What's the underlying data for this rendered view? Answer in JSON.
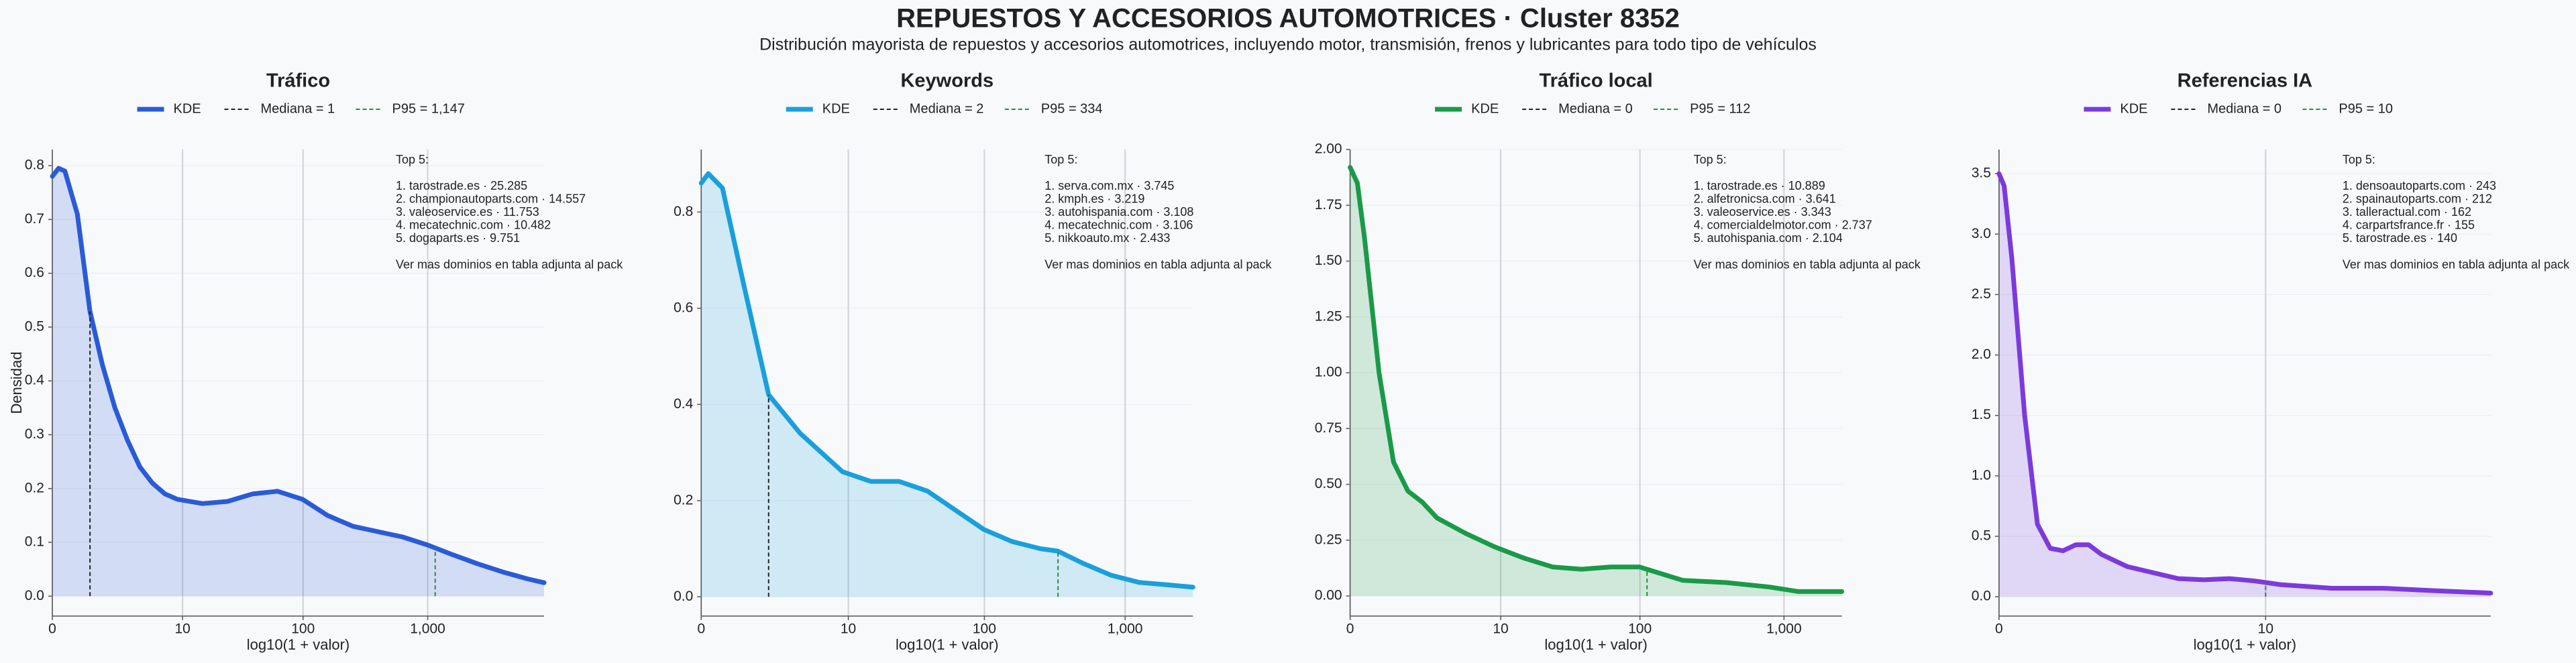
{
  "title": "REPUESTOS Y ACCESORIOS AUTOMOTRICES · Cluster 8352",
  "subtitle": "Distribución mayorista de repuestos y accesorios automotrices, incluyendo motor, transmisión, frenos y lubricantes para todo tipo de vehículos",
  "chart_data": [
    {
      "type": "line",
      "title": "Tráfico",
      "x_label": "log10(1 + valor)",
      "y_label": "Densidad",
      "x": [
        0,
        0.05,
        0.1,
        0.2,
        0.3,
        0.4,
        0.5,
        0.6,
        0.7,
        0.8,
        0.9,
        1.0,
        1.2,
        1.4,
        1.6,
        1.8,
        2.0,
        2.2,
        2.4,
        2.6,
        2.8,
        3.0,
        3.2,
        3.4,
        3.6,
        3.8,
        3.93
      ],
      "series": [
        {
          "name": "KDE",
          "color": "#2a5bd7",
          "values": [
            0.78,
            0.795,
            0.79,
            0.71,
            0.53,
            0.43,
            0.35,
            0.29,
            0.24,
            0.21,
            0.19,
            0.18,
            0.172,
            0.176,
            0.19,
            0.195,
            0.18,
            0.15,
            0.13,
            0.12,
            0.11,
            0.095,
            0.077,
            0.06,
            0.045,
            0.032,
            0.025
          ]
        }
      ],
      "fill": true,
      "reference_lines": [
        {
          "name": "Mediana = 1",
          "x": 0.301,
          "color": "#222222"
        },
        {
          "name": "P95 = 1,147",
          "x": 3.06,
          "color": "#2e8b3a"
        }
      ],
      "annotation": {
        "heading": "Top 5:",
        "items": [
          "1. tarostrade.es · 25.285",
          "2. championautoparts.com · 14.557",
          "3. valeoservice.es · 11.753",
          "4. mecatechnic.com · 10.482",
          "5. dogaparts.es · 9.751"
        ],
        "footer": "Ver mas dominios en tabla adjunta al pack"
      },
      "xlim": [
        0,
        3.93
      ],
      "ylim": [
        -0.037,
        0.83
      ],
      "xticks": [
        0,
        {
          "value": 1.041,
          "label": "10"
        },
        {
          "value": 2.004,
          "label": "100"
        },
        {
          "value": 3.0,
          "label": "1,000"
        }
      ],
      "yticks": [
        {
          "value": 0,
          "label": "0.0"
        },
        0.1,
        0.2,
        0.3,
        0.4,
        0.5,
        0.6,
        0.7,
        0.8
      ],
      "grid": true
    },
    {
      "type": "line",
      "title": "Keywords",
      "x_label": "log10(1 + valor)",
      "x": [
        0,
        0.05,
        0.15,
        0.3,
        0.477,
        0.7,
        1.0,
        1.2,
        1.4,
        1.6,
        1.8,
        2.0,
        2.2,
        2.4,
        2.525,
        2.7,
        2.9,
        3.1,
        3.3,
        3.48
      ],
      "series": [
        {
          "name": "KDE",
          "color": "#1a9fdb",
          "values": [
            0.86,
            0.88,
            0.85,
            0.65,
            0.42,
            0.34,
            0.26,
            0.24,
            0.24,
            0.22,
            0.18,
            0.14,
            0.115,
            0.1,
            0.095,
            0.07,
            0.045,
            0.03,
            0.025,
            0.02
          ]
        }
      ],
      "fill": true,
      "reference_lines": [
        {
          "name": "Mediana = 2",
          "x": 0.477,
          "color": "#222222"
        },
        {
          "name": "P95 = 334",
          "x": 2.525,
          "color": "#2e8b3a"
        }
      ],
      "annotation": {
        "heading": "Top 5:",
        "items": [
          "1. serva.com.mx · 3.745",
          "2. kmph.es · 3.219",
          "3. autohispania.com · 3.108",
          "4. mecatechnic.com · 3.106",
          "5. nikkoauto.mx · 2.433"
        ],
        "footer": "Ver mas dominios en tabla adjunta al pack"
      },
      "xlim": [
        0,
        3.48
      ],
      "ylim": [
        -0.04,
        0.93
      ],
      "xticks": [
        0,
        {
          "value": 1.041,
          "label": "10"
        },
        {
          "value": 2.004,
          "label": "100"
        },
        {
          "value": 3.0,
          "label": "1,000"
        }
      ],
      "yticks": [
        {
          "value": 0,
          "label": "0.0"
        },
        0.2,
        0.4,
        0.6,
        0.8
      ],
      "grid": true
    },
    {
      "type": "line",
      "title": "Tráfico local",
      "x_label": "log10(1 + valor)",
      "x": [
        0,
        0.05,
        0.1,
        0.2,
        0.3,
        0.4,
        0.5,
        0.6,
        0.8,
        1.0,
        1.2,
        1.4,
        1.6,
        1.8,
        2.0,
        2.1,
        2.3,
        2.6,
        2.9,
        3.1,
        3.4
      ],
      "series": [
        {
          "name": "KDE",
          "color": "#1a9a48",
          "values": [
            1.92,
            1.85,
            1.6,
            1.0,
            0.6,
            0.47,
            0.42,
            0.35,
            0.28,
            0.22,
            0.17,
            0.13,
            0.12,
            0.13,
            0.13,
            0.11,
            0.07,
            0.06,
            0.04,
            0.02,
            0.02
          ]
        }
      ],
      "fill": true,
      "reference_lines": [
        {
          "name": "Mediana = 0",
          "x": 0,
          "color": "#222222"
        },
        {
          "name": "P95 = 112",
          "x": 2.053,
          "color": "#2e8b3a"
        }
      ],
      "annotation": {
        "heading": "Top 5:",
        "items": [
          "1. tarostrade.es · 10.889",
          "2. alfetronicsa.com · 3.641",
          "3. valeoservice.es · 3.343",
          "4. comercialdelmotor.com · 2.737",
          "5. autohispania.com · 2.104"
        ],
        "footer": "Ver mas dominios en tabla adjunta al pack"
      },
      "xlim": [
        0,
        3.4
      ],
      "ylim": [
        -0.09,
        2.0
      ],
      "xticks": [
        0,
        {
          "value": 1.041,
          "label": "10"
        },
        {
          "value": 2.004,
          "label": "100"
        },
        {
          "value": 3.0,
          "label": "1,000"
        }
      ],
      "yticks": [
        {
          "value": 0,
          "label": "0.00"
        },
        0.25,
        {
          "value": 0.5,
          "label": "0.50"
        },
        0.75,
        {
          "value": 1,
          "label": "1.00"
        },
        1.25,
        {
          "value": 1.5,
          "label": "1.50"
        },
        1.75,
        {
          "value": 2,
          "label": "2.00"
        }
      ],
      "grid": true
    },
    {
      "type": "line",
      "title": "Referencias IA",
      "x_label": "log10(1 + valor)",
      "x": [
        0,
        0.02,
        0.05,
        0.1,
        0.15,
        0.2,
        0.25,
        0.3,
        0.35,
        0.4,
        0.5,
        0.6,
        0.7,
        0.8,
        0.9,
        1.0,
        1.1,
        1.3,
        1.5,
        1.7,
        1.92
      ],
      "series": [
        {
          "name": "KDE",
          "color": "#7c3adb",
          "values": [
            3.5,
            3.4,
            2.8,
            1.5,
            0.6,
            0.4,
            0.38,
            0.43,
            0.43,
            0.35,
            0.25,
            0.2,
            0.15,
            0.14,
            0.15,
            0.13,
            0.1,
            0.07,
            0.07,
            0.05,
            0.03
          ]
        }
      ],
      "fill": true,
      "reference_lines": [
        {
          "name": "Mediana = 0",
          "x": 0,
          "color": "#222222"
        },
        {
          "name": "P95 = 10",
          "x": 1.041,
          "color": "#2e8b3a"
        }
      ],
      "annotation": {
        "heading": "Top 5:",
        "items": [
          "1. densoautoparts.com · 243",
          "2. spainautoparts.com · 212",
          "3. talleractual.com · 162",
          "4. carpartsfrance.fr · 155",
          "5. tarostrade.es · 140"
        ],
        "footer": "Ver mas dominios en tabla adjunta al pack"
      },
      "xlim": [
        0,
        1.92
      ],
      "ylim": [
        -0.16,
        3.7
      ],
      "xticks": [
        0,
        {
          "value": 1.041,
          "label": "10"
        }
      ],
      "yticks": [
        {
          "value": 0,
          "label": "0.0"
        },
        0.5,
        {
          "value": 1,
          "label": "1.0"
        },
        1.5,
        {
          "value": 2,
          "label": "2.0"
        },
        2.5,
        {
          "value": 3,
          "label": "3.0"
        },
        3.5
      ],
      "grid": true
    }
  ]
}
